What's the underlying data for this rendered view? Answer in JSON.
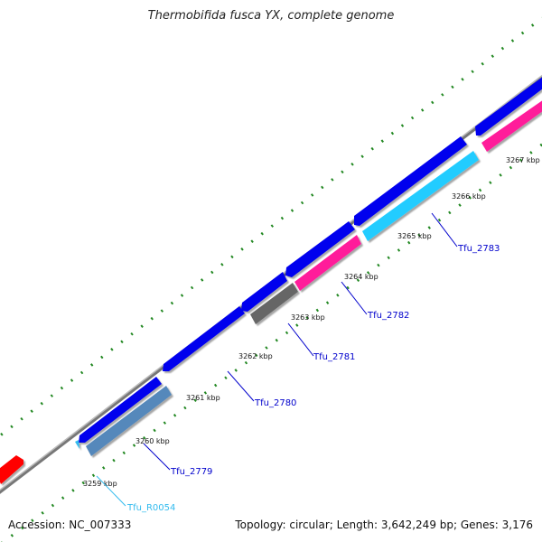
{
  "title": "Thermobifida fusca YX, complete genome",
  "footer": {
    "accession": "Accession: NC_007333",
    "summary": "Topology: circular; Length: 3,642,249 bp; Genes: 3,176"
  },
  "ticks": [
    "3259 kbp",
    "3260 kbp",
    "3261 kbp",
    "3262 kbp",
    "3263 kbp",
    "3264 kbp",
    "3265 kbp",
    "3266 kbp",
    "3267 kbp"
  ],
  "gene_labels": [
    {
      "id": "Tfu_R0054",
      "color": "#33bbee"
    },
    {
      "id": "Tfu_2779",
      "color": "#0000cc"
    },
    {
      "id": "Tfu_2780",
      "color": "#0000cc"
    },
    {
      "id": "Tfu_2781",
      "color": "#0000cc"
    },
    {
      "id": "Tfu_2782",
      "color": "#0000cc"
    },
    {
      "id": "Tfu_2783",
      "color": "#0000cc"
    }
  ],
  "colors": {
    "backbone": "#888888",
    "forward_cds": "#0000ee",
    "reverse_cds_pink": "#ff1f9a",
    "reverse_cds_cyan": "#22ccff",
    "reverse_cds_grey": "#666666",
    "reverse_cds_steel": "#5588bb",
    "trna": "#33bbee",
    "partial_red": "#ff0000",
    "tick_green": "#228822"
  }
}
